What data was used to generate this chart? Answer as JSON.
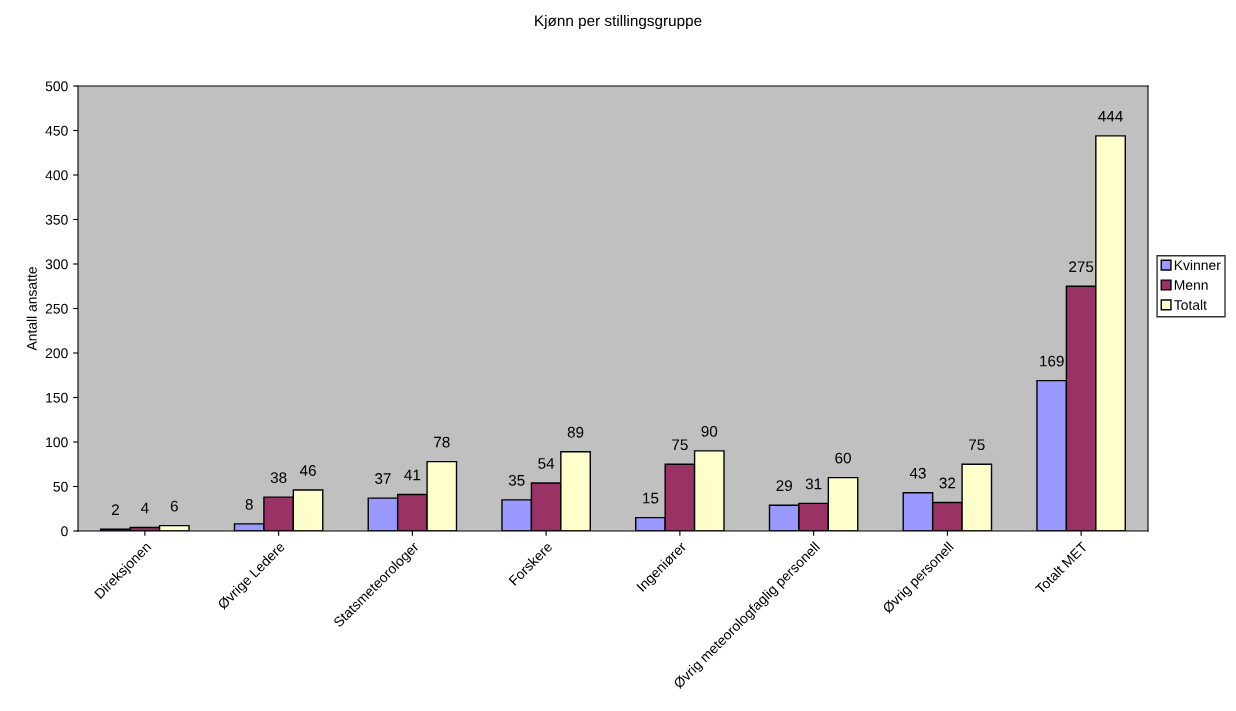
{
  "chart_data": {
    "type": "bar",
    "title": "Kjønn per stillingsgruppe",
    "ylabel": "Antall ansatte",
    "categories": [
      "Direksjonen",
      "Øvrige Ledere",
      "Statsmeteorologer",
      "Forskere",
      "Ingeniører",
      "Øvrig meteorologfaglig personell",
      "Øvrig personell",
      "Totalt MET"
    ],
    "series": [
      {
        "name": "Kvinner",
        "color": "#9999ff",
        "values": [
          2,
          8,
          37,
          35,
          15,
          29,
          43,
          169
        ]
      },
      {
        "name": "Menn",
        "color": "#993366",
        "values": [
          4,
          38,
          41,
          54,
          75,
          31,
          32,
          275
        ]
      },
      {
        "name": "Totalt",
        "color": "#ffffcc",
        "values": [
          6,
          46,
          78,
          89,
          90,
          60,
          75,
          444
        ]
      }
    ],
    "ylim": [
      0,
      500
    ],
    "yticks": [
      0,
      50,
      100,
      150,
      200,
      250,
      300,
      350,
      400,
      450,
      500
    ],
    "data_labels": true,
    "legend": "right",
    "grid": false
  }
}
